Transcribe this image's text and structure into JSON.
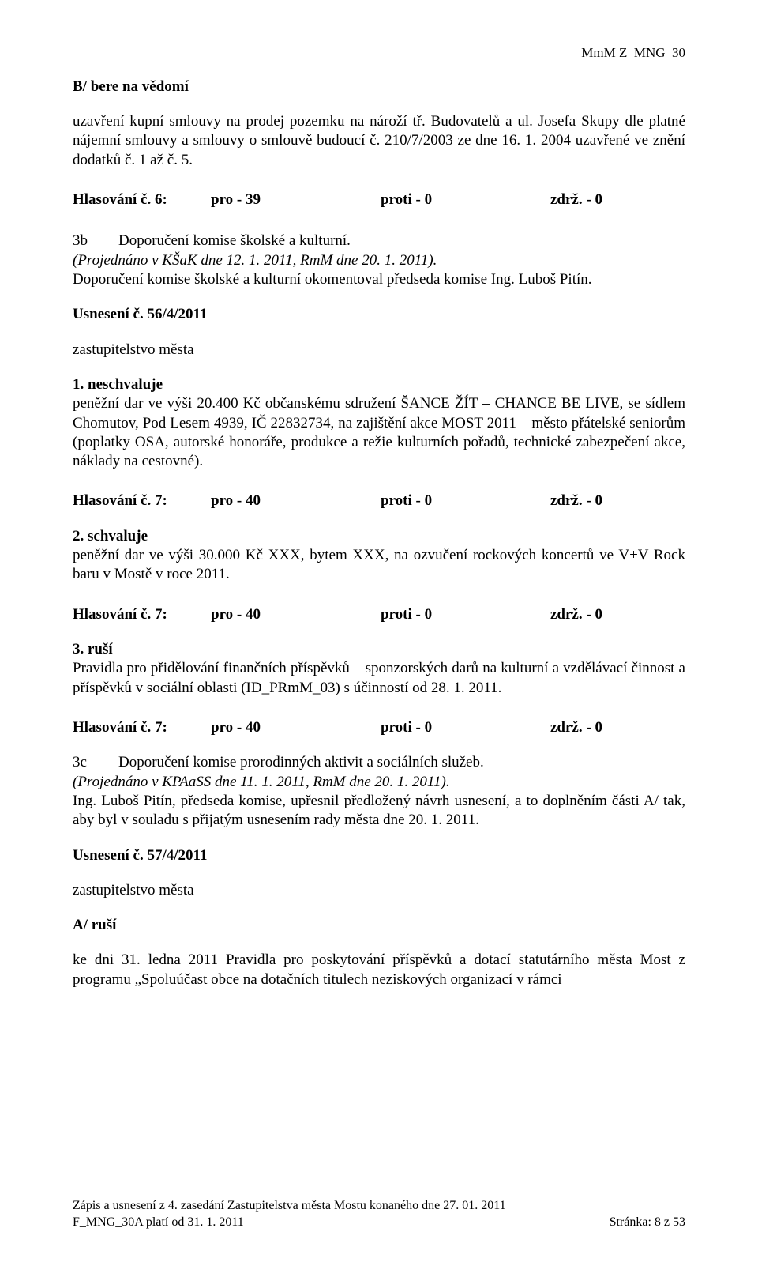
{
  "header_right": "MmM Z_MNG_30",
  "sectionB_title": "B/  bere na vědomí",
  "sectionB_para": "uzavření kupní smlouvy na prodej pozemku na nároží tř. Budovatelů a ul. Josefa Skupy dle platné nájemní smlouvy a smlouvy o smlouvě budoucí č. 210/7/2003 ze dne 16. 1. 2004 uzavřené ve znění dodatků č. 1 až č. 5.",
  "vote6": {
    "label": "Hlasování č. 6:",
    "pro": "pro - 39",
    "proti": "proti - 0",
    "zdrz": "zdrž. - 0"
  },
  "item3b": {
    "code": "3b",
    "text": "Doporučení komise školské a kulturní."
  },
  "item3b_note": "(Projednáno v KŠaK dne 12. 1. 2011, RmM dne 20. 1. 2011).",
  "item3b_after": "Doporučení komise školské a kulturní okomentoval předseda komise Ing. Luboš Pitín.",
  "usneseni56": "Usnesení č. 56/4/2011",
  "zm_text": "zastupitelstvo města",
  "p1_title": "1. neschvaluje",
  "p1_text": "peněžní dar ve výši 20.400 Kč občanskému sdružení ŠANCE ŽÍT – CHANCE BE LIVE, se sídlem Chomutov, Pod Lesem 4939, IČ 22832734, na zajištění akce MOST 2011 – město přátelské seniorům (poplatky OSA, autorské honoráře, produkce a režie kulturních pořadů, technické zabezpečení akce, náklady na cestovné).",
  "vote7a": {
    "label": "Hlasování č. 7:",
    "pro": "pro - 40",
    "proti": "proti - 0",
    "zdrz": "zdrž. - 0"
  },
  "p2_title": "2. schvaluje",
  "p2_text": "peněžní dar ve výši 30.000 Kč XXX, bytem XXX, na ozvučení rockových koncertů ve V+V Rock baru v Mostě v roce 2011.",
  "vote7b": {
    "label": "Hlasování č. 7:",
    "pro": "pro - 40",
    "proti": "proti - 0",
    "zdrz": "zdrž. - 0"
  },
  "p3_title": "3. ruší",
  "p3_text": "Pravidla pro přidělování finančních příspěvků – sponzorských darů na kulturní a vzdělávací činnost a příspěvků v sociální oblasti (ID_PRmM_03) s účinností od 28. 1. 2011.",
  "vote7c": {
    "label": "Hlasování č. 7:",
    "pro": "pro - 40",
    "proti": "proti - 0",
    "zdrz": "zdrž. - 0"
  },
  "item3c": {
    "code": "3c",
    "text": "Doporučení komise prorodinných aktivit a sociálních služeb."
  },
  "item3c_note": "(Projednáno v KPAaSS dne 11. 1. 2011, RmM dne 20. 1. 2011).",
  "item3c_after": "Ing. Luboš Pitín, předseda komise, upřesnil předložený návrh usnesení, a to doplněním části A/ tak, aby byl v souladu s přijatým usnesením rady města dne 20. 1. 2011.",
  "usneseni57": "Usnesení č. 57/4/2011",
  "a_rusi_title": "A/ ruší",
  "a_rusi_text": "ke dni 31. ledna 2011 Pravidla pro poskytování příspěvků a dotací statutárního města Most z programu „Spoluúčast obce na dotačních titulech neziskových organizací v rámci",
  "footer": {
    "line1": "Zápis a usnesení z 4. zasedání Zastupitelstva města Mostu konaného dne 27. 01. 2011",
    "line2_left": "F_MNG_30A platí od 31. 1. 2011",
    "line2_right": "Stránka: 8 z 53"
  }
}
